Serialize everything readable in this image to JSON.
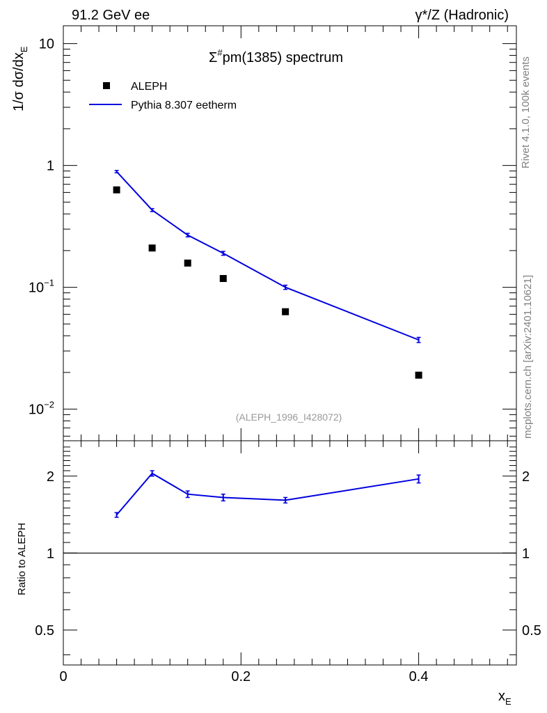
{
  "header": {
    "left": "91.2 GeV ee",
    "right": "γ*/Z (Hadronic)"
  },
  "side_labels": {
    "rivet": "Rivet 4.1.0,  100k events",
    "mcplots": "mcplots.cern.ch [arXiv:2401.10621]"
  },
  "watermark": "(ALEPH_1996_I428072)",
  "colors": {
    "mc": "#0000e0",
    "data": "#000000",
    "frame": "#000000",
    "watermark": "#999999",
    "side": "#808080"
  },
  "chart_data": [
    {
      "type": "scatter+line",
      "title_main": "Σ",
      "title_sup": "#",
      "title_rest": "pm(1385) spectrum",
      "ylabel_prefix": "1/σ  dσ/dx",
      "ylabel_sub": "E",
      "yscale": "log",
      "ylim": [
        0.0055,
        14
      ],
      "xlim": [
        0,
        0.51
      ],
      "yticks": [
        {
          "value": 10,
          "base": "10",
          "exp": ""
        },
        {
          "value": 1,
          "base": "1",
          "exp": ""
        },
        {
          "value": 0.1,
          "base": "10",
          "exp": "−1"
        },
        {
          "value": 0.01,
          "base": "10",
          "exp": "−2"
        }
      ],
      "legend": {
        "data": "ALEPH",
        "mc": "Pythia 8.307 eetherm"
      },
      "series": [
        {
          "name": "ALEPH",
          "kind": "data",
          "x": [
            0.06,
            0.1,
            0.14,
            0.18,
            0.25,
            0.4
          ],
          "y": [
            0.63,
            0.21,
            0.158,
            0.118,
            0.063,
            0.019
          ]
        },
        {
          "name": "Pythia 8.307 eetherm",
          "kind": "mc",
          "x": [
            0.06,
            0.1,
            0.14,
            0.18,
            0.25,
            0.4
          ],
          "y": [
            0.89,
            0.43,
            0.268,
            0.19,
            0.1,
            0.037
          ],
          "yerr": [
            0.02,
            0.012,
            0.009,
            0.007,
            0.004,
            0.0018
          ]
        }
      ]
    },
    {
      "type": "ratio",
      "ylabel": "Ratio to ALEPH",
      "xlabel": "x",
      "xlabel_sub": "E",
      "yscale": "log",
      "ylim": [
        0.365,
        2.75
      ],
      "yticks": [
        {
          "value": 2,
          "label": "2"
        },
        {
          "value": 1,
          "label": "1"
        },
        {
          "value": 0.5,
          "label": "0.5"
        }
      ],
      "xticks": [
        {
          "value": 0,
          "label": "0"
        },
        {
          "value": 0.2,
          "label": "0.2"
        },
        {
          "value": 0.4,
          "label": "0.4"
        }
      ],
      "reference": 1,
      "x": [
        0.06,
        0.1,
        0.14,
        0.18,
        0.25,
        0.4
      ],
      "y": [
        1.41,
        2.05,
        1.7,
        1.65,
        1.61,
        1.95
      ],
      "yerr": [
        0.03,
        0.05,
        0.05,
        0.05,
        0.04,
        0.07
      ]
    }
  ]
}
